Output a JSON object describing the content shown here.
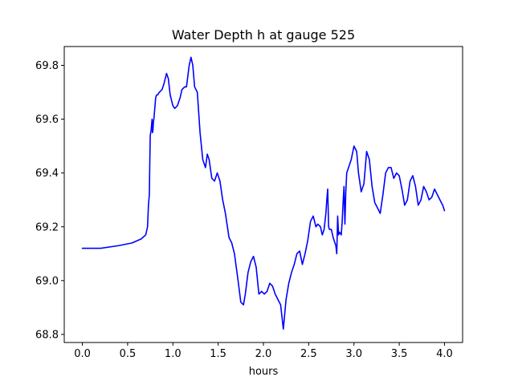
{
  "chart_data": {
    "type": "line",
    "title": "Water Depth h at gauge 525",
    "xlabel": "hours",
    "ylabel": "",
    "xlim": [
      -0.2,
      4.2
    ],
    "ylim": [
      68.77,
      69.87
    ],
    "x_ticks": [
      0.0,
      0.5,
      1.0,
      1.5,
      2.0,
      2.5,
      3.0,
      3.5,
      4.0
    ],
    "x_tick_labels": [
      "0.0",
      "0.5",
      "1.0",
      "1.5",
      "2.0",
      "2.5",
      "3.0",
      "3.5",
      "4.0"
    ],
    "y_ticks": [
      68.8,
      69.0,
      69.2,
      69.4,
      69.6,
      69.8
    ],
    "y_tick_labels": [
      "68.8",
      "69.0",
      "69.2",
      "69.4",
      "69.6",
      "69.8"
    ],
    "grid": false,
    "series": [
      {
        "color": "#0000ff",
        "x": [
          0.0,
          0.2,
          0.4,
          0.55,
          0.65,
          0.7,
          0.72,
          0.73,
          0.74,
          0.745,
          0.75,
          0.76,
          0.77,
          0.775,
          0.78,
          0.785,
          0.79,
          0.81,
          0.82,
          0.83,
          0.85,
          0.88,
          0.9,
          0.93,
          0.95,
          0.97,
          1.0,
          1.02,
          1.05,
          1.08,
          1.1,
          1.13,
          1.15,
          1.18,
          1.2,
          1.22,
          1.24,
          1.27,
          1.3,
          1.33,
          1.36,
          1.38,
          1.4,
          1.43,
          1.46,
          1.49,
          1.52,
          1.55,
          1.58,
          1.62,
          1.65,
          1.68,
          1.7,
          1.72,
          1.75,
          1.78,
          1.8,
          1.83,
          1.86,
          1.89,
          1.92,
          1.95,
          1.98,
          2.01,
          2.04,
          2.07,
          2.1,
          2.13,
          2.16,
          2.19,
          2.22,
          2.25,
          2.28,
          2.31,
          2.34,
          2.37,
          2.4,
          2.43,
          2.46,
          2.49,
          2.52,
          2.55,
          2.58,
          2.6,
          2.63,
          2.65,
          2.67,
          2.69,
          2.7,
          2.71,
          2.72,
          2.73,
          2.75,
          2.77,
          2.8,
          2.81,
          2.82,
          2.83,
          2.84,
          2.86,
          2.87,
          2.88,
          2.89,
          2.9,
          2.91,
          2.92,
          2.94,
          2.97,
          3.0,
          3.03,
          3.05,
          3.08,
          3.11,
          3.14,
          3.17,
          3.2,
          3.23,
          3.26,
          3.29,
          3.32,
          3.35,
          3.38,
          3.41,
          3.44,
          3.47,
          3.5,
          3.53,
          3.56,
          3.59,
          3.62,
          3.65,
          3.68,
          3.71,
          3.74,
          3.77,
          3.8,
          3.83,
          3.86,
          3.89,
          3.92,
          3.95,
          3.98,
          4.0
        ],
        "y": [
          69.12,
          69.12,
          69.13,
          69.14,
          69.155,
          69.17,
          69.2,
          69.28,
          69.32,
          69.44,
          69.54,
          69.56,
          69.6,
          69.55,
          69.56,
          69.59,
          69.6,
          69.68,
          69.69,
          69.69,
          69.7,
          69.71,
          69.73,
          69.77,
          69.75,
          69.69,
          69.65,
          69.64,
          69.65,
          69.68,
          69.71,
          69.72,
          69.72,
          69.8,
          69.83,
          69.8,
          69.72,
          69.7,
          69.55,
          69.45,
          69.42,
          69.47,
          69.45,
          69.38,
          69.37,
          69.4,
          69.37,
          69.3,
          69.25,
          69.16,
          69.14,
          69.1,
          69.05,
          69.0,
          68.92,
          68.91,
          68.95,
          69.03,
          69.07,
          69.09,
          69.05,
          68.95,
          68.96,
          68.95,
          68.96,
          68.99,
          68.98,
          68.95,
          68.93,
          68.91,
          68.82,
          68.93,
          68.99,
          69.03,
          69.06,
          69.1,
          69.11,
          69.06,
          69.1,
          69.15,
          69.22,
          69.24,
          69.2,
          69.21,
          69.2,
          69.17,
          69.19,
          69.25,
          69.3,
          69.34,
          69.2,
          69.19,
          69.19,
          69.16,
          69.13,
          69.1,
          69.24,
          69.17,
          69.18,
          69.17,
          69.22,
          69.29,
          69.35,
          69.21,
          69.33,
          69.4,
          69.42,
          69.45,
          69.5,
          69.48,
          69.4,
          69.33,
          69.36,
          69.48,
          69.45,
          69.35,
          69.29,
          69.27,
          69.25,
          69.32,
          69.4,
          69.42,
          69.42,
          69.38,
          69.4,
          69.39,
          69.34,
          69.28,
          69.3,
          69.37,
          69.39,
          69.35,
          69.28,
          69.3,
          69.35,
          69.33,
          69.3,
          69.31,
          69.34,
          69.32,
          69.3,
          69.28,
          69.26
        ]
      }
    ]
  }
}
